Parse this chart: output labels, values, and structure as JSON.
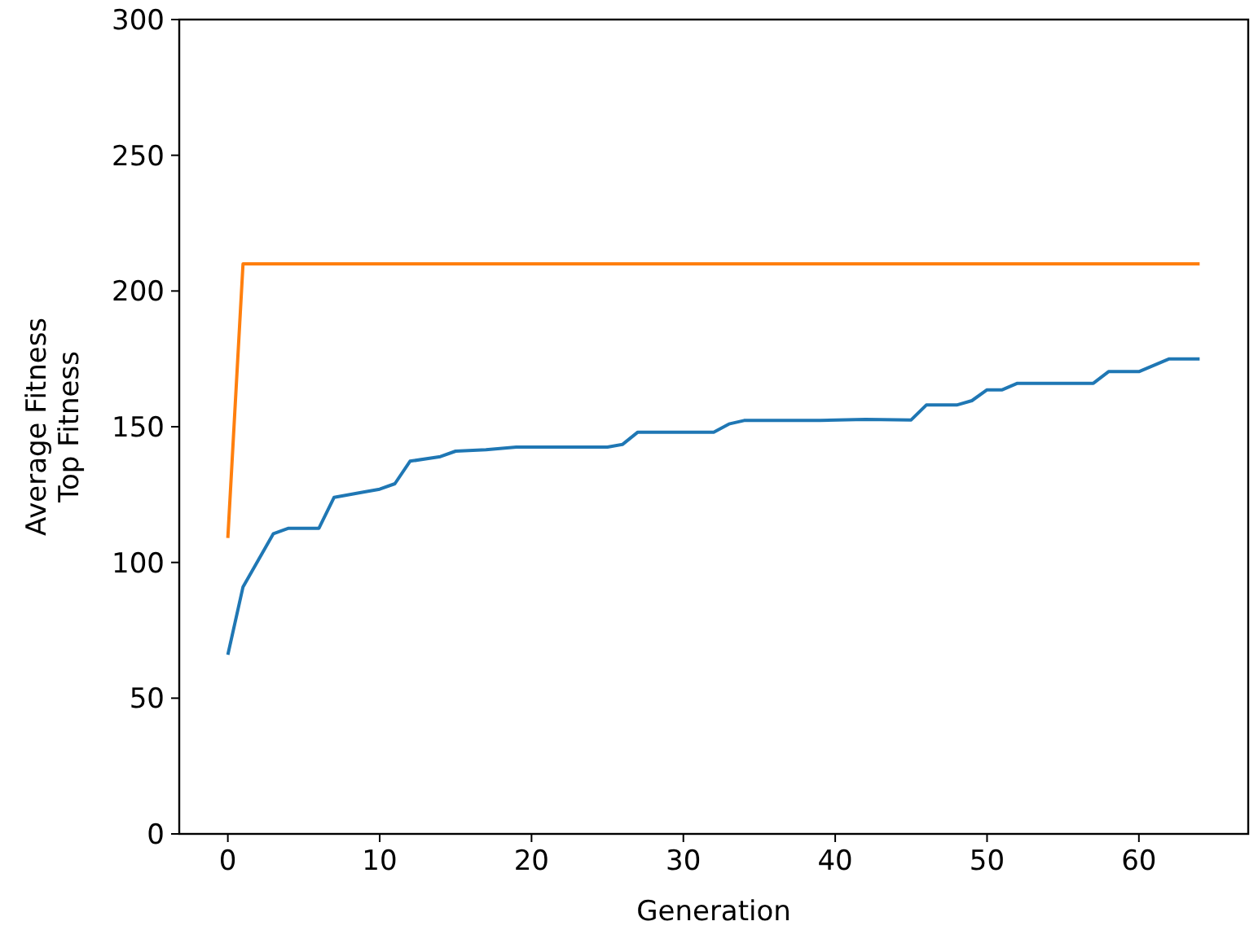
{
  "chart_data": {
    "type": "line",
    "xlabel": "Generation",
    "ylabel": "Average Fitness\nTop Fitness",
    "xlim": [
      -3.2,
      67.2
    ],
    "ylim": [
      0,
      300
    ],
    "xticks": [
      0,
      10,
      20,
      30,
      40,
      50,
      60
    ],
    "yticks": [
      0,
      50,
      100,
      150,
      200,
      250,
      300
    ],
    "grid": false,
    "marker": "none",
    "line_style": "solid",
    "series": [
      {
        "color": "#1f77b4",
        "x": [
          0,
          1,
          3,
          4,
          6,
          7,
          9,
          10,
          11,
          12,
          14,
          15,
          17,
          19,
          25,
          26,
          27,
          32,
          33,
          34,
          39,
          42,
          45,
          46,
          48,
          49,
          50,
          51,
          52,
          57,
          58,
          60,
          62,
          64
        ],
        "values": [
          66,
          91,
          110.6,
          112.6,
          112.6,
          124,
          126,
          127,
          129,
          137.3,
          139,
          141,
          141.5,
          142.5,
          142.5,
          143.5,
          148,
          148,
          151,
          152.3,
          152.3,
          152.7,
          152.5,
          158,
          158,
          159.6,
          163.6,
          163.6,
          166,
          166,
          170.3,
          170.3,
          175,
          175
        ]
      },
      {
        "color": "#ff7f0e",
        "x": [
          0,
          1,
          64
        ],
        "values": [
          109,
          210,
          210
        ]
      }
    ]
  }
}
